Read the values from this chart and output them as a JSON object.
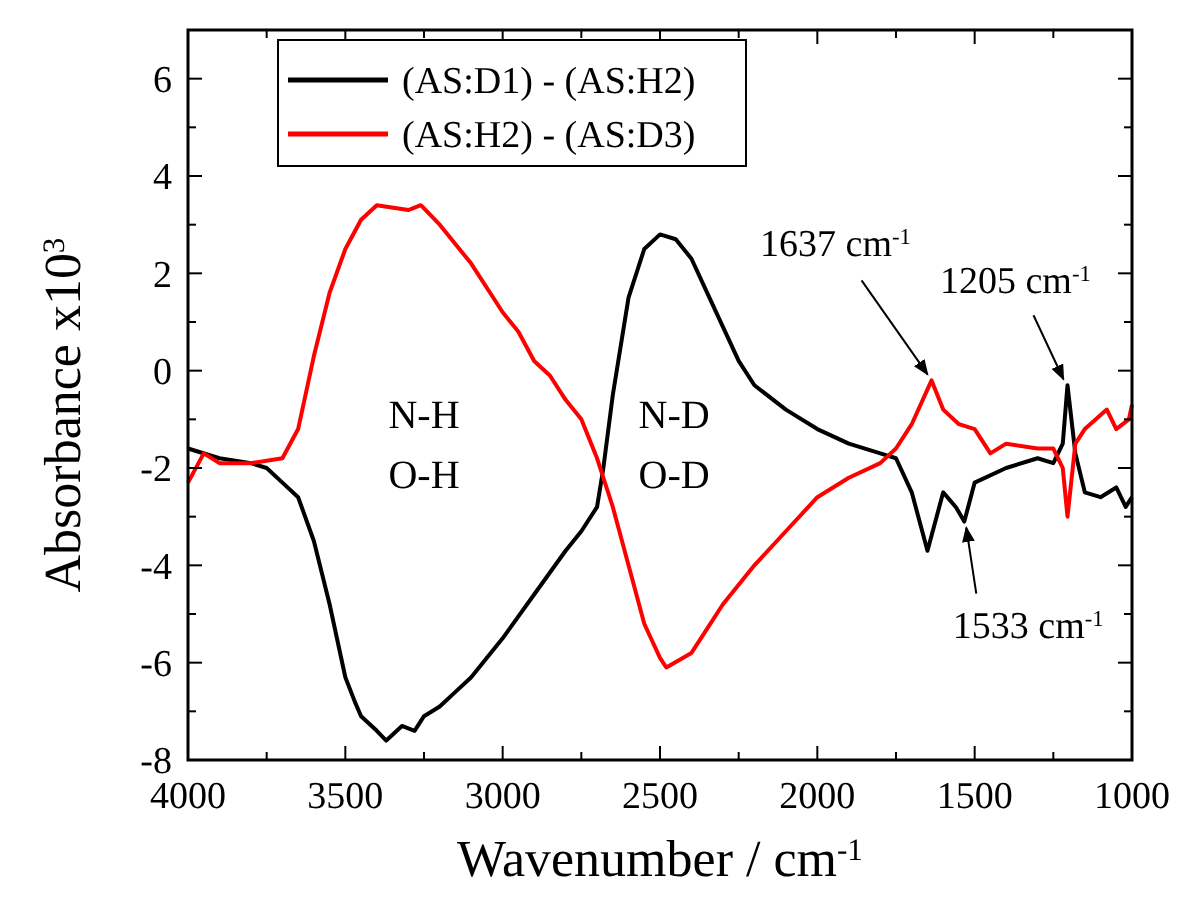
{
  "chart_data": {
    "type": "line",
    "xlabel": "Wavenumber / cm$^{-1}$",
    "ylabel": "Absorbance x10$^{3}$",
    "xlim": [
      4000,
      1000
    ],
    "xticks": [
      4000,
      3500,
      3000,
      2500,
      2000,
      1500,
      1000
    ],
    "ylim": [
      -8,
      7
    ],
    "yticks": [
      -8,
      -6,
      -4,
      -2,
      0,
      2,
      4,
      6
    ],
    "legend": "top left",
    "grid": false,
    "line_style": "solid",
    "marker": "none",
    "x": [
      4000,
      3900,
      3800,
      3750,
      3700,
      3650,
      3600,
      3550,
      3500,
      3470,
      3450,
      3400,
      3370,
      3320,
      3280,
      3250,
      3200,
      3150,
      3100,
      3000,
      2900,
      2800,
      2750,
      2700,
      2680,
      2650,
      2600,
      2550,
      2500,
      2450,
      2400,
      2350,
      2300,
      2250,
      2200,
      2100,
      2000,
      1900,
      1800,
      1750,
      1700,
      1650,
      1600,
      1560,
      1533,
      1500,
      1400,
      1300,
      1250,
      1220,
      1205,
      1180,
      1150,
      1100,
      1050,
      1020,
      1000
    ],
    "series": [
      {
        "name": "(AS:D1) - (AS:H2)",
        "color": "#000000",
        "values": [
          -1.6,
          -1.8,
          -1.9,
          -2.0,
          -2.3,
          -2.6,
          -3.5,
          -4.8,
          -6.3,
          -6.8,
          -7.1,
          -7.4,
          -7.6,
          -7.3,
          -7.4,
          -7.1,
          -6.9,
          -6.6,
          -6.3,
          -5.5,
          -4.6,
          -3.7,
          -3.3,
          -2.8,
          -2.0,
          -0.5,
          1.5,
          2.5,
          2.8,
          2.7,
          2.3,
          1.6,
          0.9,
          0.2,
          -0.3,
          -0.8,
          -1.2,
          -1.5,
          -1.7,
          -1.8,
          -2.5,
          -3.7,
          -2.5,
          -2.8,
          -3.1,
          -2.3,
          -2.0,
          -1.8,
          -1.9,
          -1.5,
          -0.3,
          -1.7,
          -2.5,
          -2.6,
          -2.4,
          -2.8,
          -2.6
        ]
      },
      {
        "name": "(AS:H2) - (AS:D3)",
        "color": "#ff0000",
        "x": [
          4000,
          3950,
          3900,
          3800,
          3700,
          3650,
          3600,
          3550,
          3500,
          3450,
          3400,
          3300,
          3260,
          3200,
          3100,
          3000,
          2950,
          2900,
          2850,
          2800,
          2750,
          2700,
          2650,
          2600,
          2550,
          2500,
          2480,
          2400,
          2350,
          2300,
          2200,
          2100,
          2000,
          1900,
          1800,
          1750,
          1700,
          1637,
          1600,
          1550,
          1500,
          1450,
          1400,
          1300,
          1250,
          1220,
          1205,
          1180,
          1150,
          1080,
          1050,
          1010,
          1000
        ],
        "values": [
          -2.3,
          -1.7,
          -1.9,
          -1.9,
          -1.8,
          -1.2,
          0.3,
          1.6,
          2.5,
          3.1,
          3.4,
          3.3,
          3.4,
          3.0,
          2.2,
          1.2,
          0.8,
          0.2,
          -0.1,
          -0.6,
          -1.0,
          -1.8,
          -2.8,
          -4.0,
          -5.2,
          -5.9,
          -6.1,
          -5.8,
          -5.3,
          -4.8,
          -4.0,
          -3.3,
          -2.6,
          -2.2,
          -1.9,
          -1.6,
          -1.1,
          -0.2,
          -0.8,
          -1.1,
          -1.2,
          -1.7,
          -1.5,
          -1.6,
          -1.6,
          -2.0,
          -3.0,
          -1.5,
          -1.2,
          -0.8,
          -1.2,
          -1.0,
          -0.7
        ]
      }
    ],
    "annotations": [
      "N-H",
      "O-H",
      "N-D",
      "O-D",
      {
        "text": "1637 cm$^{-1}$",
        "x": 1637,
        "y": -0.2
      },
      {
        "text": "1205 cm$^{-1}$",
        "x": 1205,
        "y": -0.3
      },
      {
        "text": "1533 cm$^{-1}$",
        "x": 1533,
        "y": -3.1
      }
    ]
  }
}
